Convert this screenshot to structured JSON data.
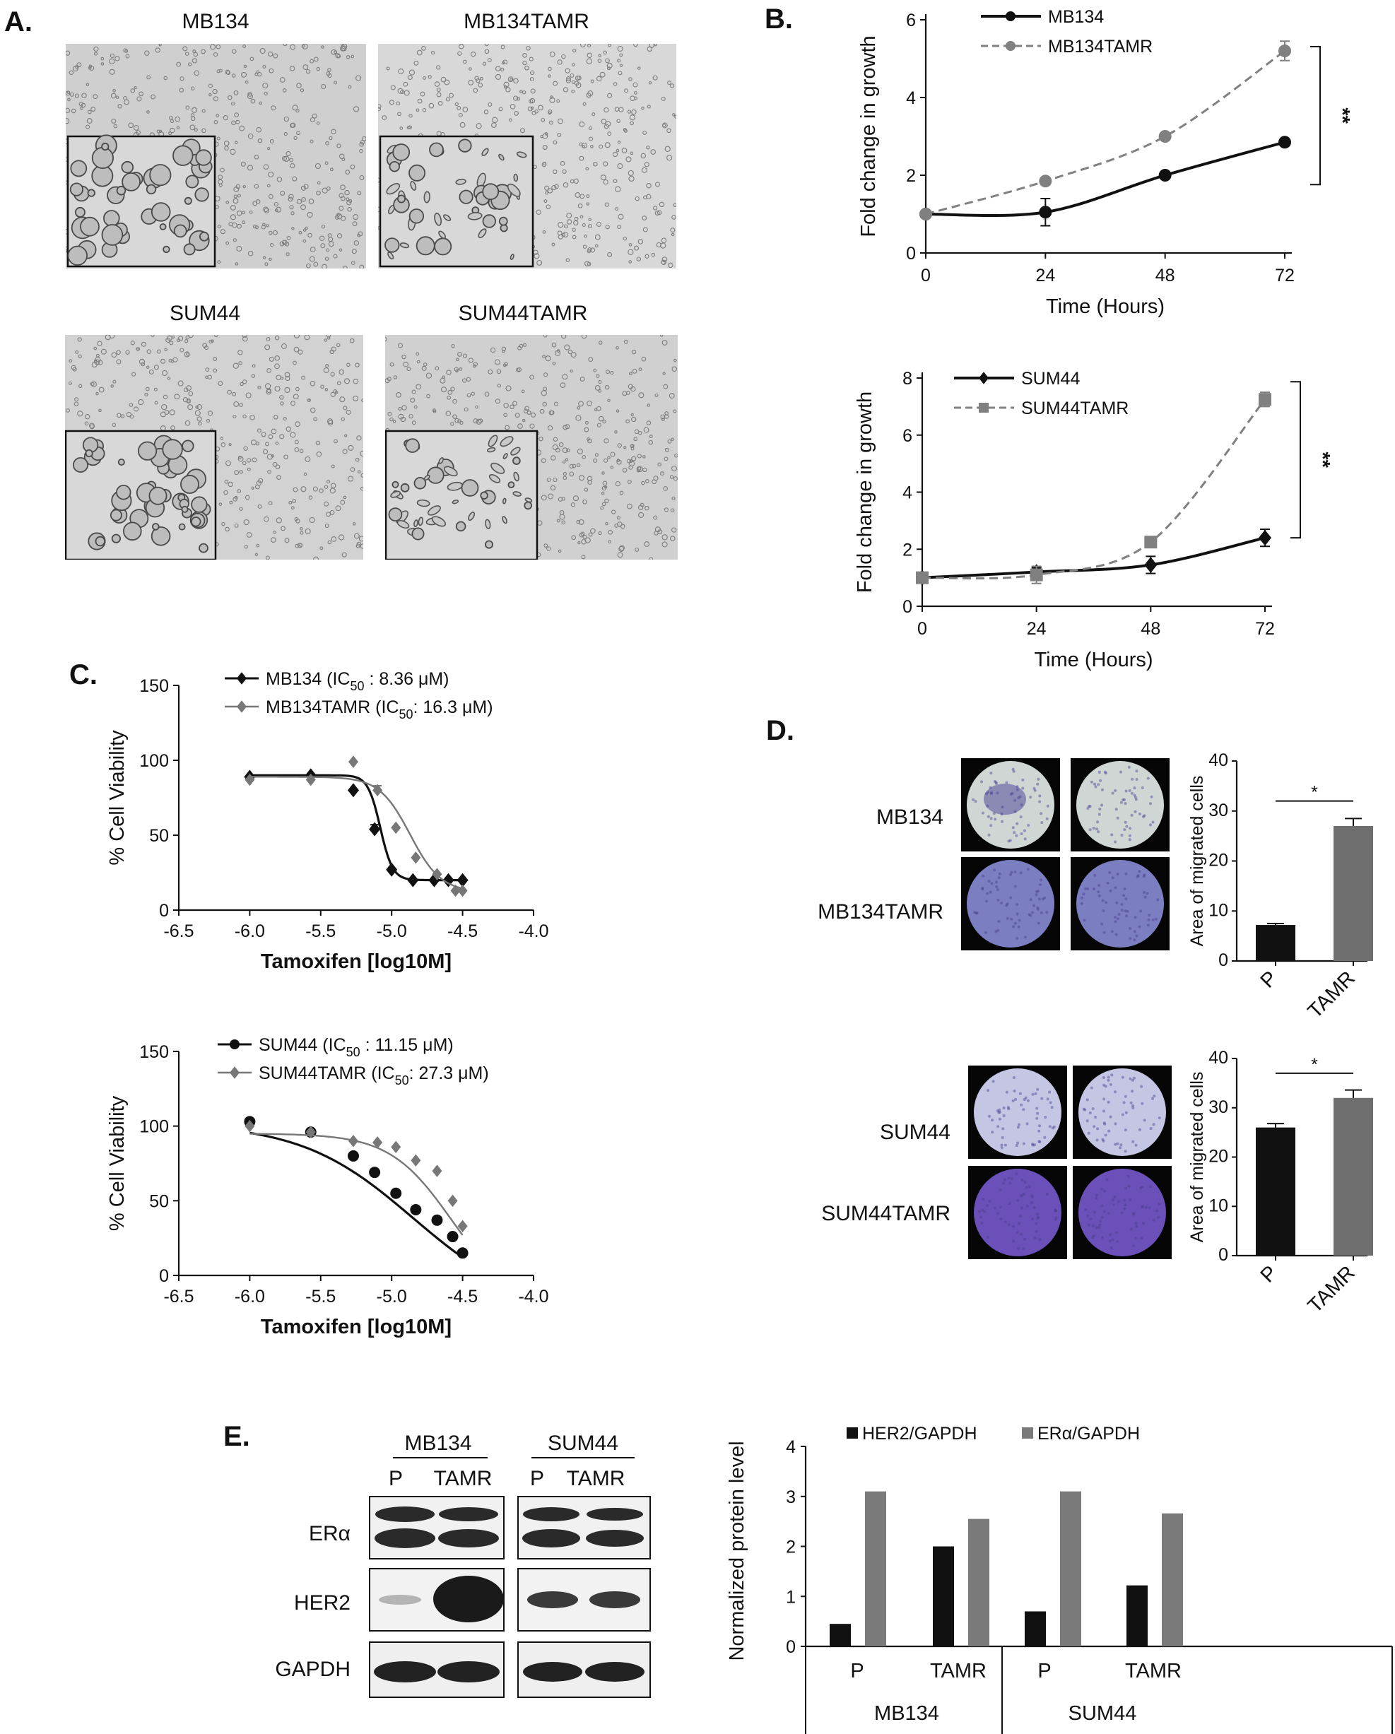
{
  "figure": {
    "panel_a": {
      "label": "A.",
      "images": [
        {
          "label": "MB134",
          "tint": "#cfcfcf"
        },
        {
          "label": "MB134TAMR",
          "tint": "#d8d8d8"
        },
        {
          "label": "SUM44",
          "tint": "#d2d2d2"
        },
        {
          "label": "SUM44TAMR",
          "tint": "#d0d0d0"
        }
      ]
    },
    "panel_b": {
      "label": "B."
    },
    "panel_c": {
      "label": "C."
    },
    "panel_d": {
      "label": "D.",
      "rows": [
        "MB134",
        "MB134TAMR",
        "SUM44",
        "SUM44TAMR"
      ],
      "well_colors": {
        "MB134": "#cfd6d4",
        "MB134TAMR": "#7b7fc2",
        "SUM44": "#c4c6e4",
        "SUM44TAMR": "#6a50b8"
      }
    },
    "panel_e": {
      "label": "E.",
      "groups": [
        "MB134",
        "SUM44"
      ],
      "lanes": [
        "P",
        "TAMR"
      ],
      "rows": [
        "ERα",
        "HER2",
        "GAPDH"
      ]
    }
  },
  "chart_data": [
    {
      "id": "b1",
      "type": "line",
      "xlabel": "Time (Hours)",
      "ylabel": "Fold change in growth",
      "xlim": [
        0,
        72
      ],
      "ylim": [
        0,
        6
      ],
      "xticks": [
        0,
        24,
        48,
        72
      ],
      "yticks": [
        0,
        2,
        4,
        6
      ],
      "significance": "**",
      "series": [
        {
          "name": "MB134",
          "x": [
            0,
            24,
            48,
            72
          ],
          "y": [
            1.0,
            1.05,
            2.0,
            2.85
          ],
          "err": [
            0.05,
            0.35,
            0.06,
            0.08
          ],
          "color": "#111111",
          "dash": false,
          "marker": "circle"
        },
        {
          "name": "MB134TAMR",
          "x": [
            0,
            24,
            48,
            72
          ],
          "y": [
            1.0,
            1.85,
            3.0,
            5.2
          ],
          "err": [
            0.05,
            0.05,
            0.08,
            0.25
          ],
          "color": "#808080",
          "dash": true,
          "marker": "circle"
        }
      ]
    },
    {
      "id": "b2",
      "type": "line",
      "xlabel": "Time (Hours)",
      "ylabel": "Fold change in growth",
      "xlim": [
        0,
        72
      ],
      "ylim": [
        0,
        8
      ],
      "xticks": [
        0,
        24,
        48,
        72
      ],
      "yticks": [
        0,
        2,
        4,
        6,
        8
      ],
      "significance": "**",
      "series": [
        {
          "name": "SUM44",
          "x": [
            0,
            24,
            48,
            72
          ],
          "y": [
            1.0,
            1.2,
            1.45,
            2.4
          ],
          "err": [
            0.1,
            0.15,
            0.3,
            0.3
          ],
          "color": "#111111",
          "dash": false,
          "marker": "diamond"
        },
        {
          "name": "SUM44TAMR",
          "x": [
            0,
            24,
            48,
            72
          ],
          "y": [
            1.0,
            1.1,
            2.25,
            7.25
          ],
          "err": [
            0.1,
            0.3,
            0.15,
            0.25
          ],
          "color": "#808080",
          "dash": true,
          "marker": "square"
        }
      ]
    },
    {
      "id": "c1",
      "type": "scatter",
      "xlabel": "Tamoxifen [log10M]",
      "ylabel": "% Cell Viability",
      "xlim": [
        -6.5,
        -4.0
      ],
      "ylim": [
        0,
        150
      ],
      "xticks": [
        "-6.5",
        "-6.0",
        "-5.5",
        "-5.0",
        "-4.5",
        "-4.0"
      ],
      "yticks": [
        0,
        50,
        100,
        150
      ],
      "series": [
        {
          "name": "MB134 (IC",
          "ic_sub": "50",
          "ic_value": " : 8.36 μM)",
          "color": "#111111",
          "marker": "diamond",
          "x": [
            -6.0,
            -5.57,
            -5.27,
            -5.12,
            -5.0,
            -4.85,
            -4.7,
            -4.6,
            -4.5
          ],
          "y": [
            89,
            90,
            80,
            54,
            27,
            20,
            20,
            20,
            20
          ],
          "err_x": [
            -5.12
          ],
          "err": [
            3
          ],
          "fit": {
            "top": 90,
            "bottom": 20,
            "logec50": -5.08,
            "hill": 10
          }
        },
        {
          "name": "MB134TAMR (IC",
          "ic_sub": "50",
          "ic_value": ": 16.3 μM)",
          "color": "#777777",
          "marker": "diamond",
          "x": [
            -6.0,
            -5.57,
            -5.27,
            -5.1,
            -4.97,
            -4.83,
            -4.68,
            -4.55,
            -4.5
          ],
          "y": [
            87,
            87,
            99,
            80,
            55,
            35,
            24,
            13,
            13
          ],
          "err_x": [
            -5.1
          ],
          "err": [
            3
          ],
          "fit": {
            "top": 89,
            "bottom": 12,
            "logec50": -4.87,
            "hill": 4
          }
        }
      ]
    },
    {
      "id": "c2",
      "type": "scatter",
      "xlabel": "Tamoxifen [log10M]",
      "ylabel": "% Cell Viability",
      "xlim": [
        -6.5,
        -4.0
      ],
      "ylim": [
        0,
        150
      ],
      "xticks": [
        "-6.5",
        "-6.0",
        "-5.5",
        "-5.0",
        "-4.5",
        "-4.0"
      ],
      "yticks": [
        0,
        50,
        100,
        150
      ],
      "series": [
        {
          "name": "SUM44 (IC",
          "ic_sub": "50",
          "ic_value": " : 11.15 μM)",
          "color": "#111111",
          "marker": "circle",
          "x": [
            -6.0,
            -5.57,
            -5.27,
            -5.12,
            -4.97,
            -4.83,
            -4.68,
            -4.57,
            -4.5
          ],
          "y": [
            103,
            96,
            80,
            69,
            55,
            44,
            37,
            26,
            15
          ],
          "fit": {
            "top": 102,
            "bottom": -25,
            "logec50": -4.85,
            "hill": 1.1
          }
        },
        {
          "name": "SUM44TAMR (IC",
          "ic_sub": "50",
          "ic_value": ": 27.3 μM)",
          "color": "#777777",
          "marker": "diamond",
          "x": [
            -6.0,
            -5.57,
            -5.27,
            -5.1,
            -4.97,
            -4.83,
            -4.68,
            -4.57,
            -4.5
          ],
          "y": [
            100,
            96,
            90,
            89,
            86,
            77,
            70,
            50,
            33
          ],
          "fit": {
            "top": 95,
            "bottom": -20,
            "logec50": -4.58,
            "hill": 2.0
          }
        }
      ]
    },
    {
      "id": "d1",
      "type": "bar",
      "ylabel": "Area of migrated cells",
      "ylim": [
        0,
        40
      ],
      "yticks": [
        0,
        10,
        20,
        30,
        40
      ],
      "categories": [
        "P",
        "TAMR"
      ],
      "values": [
        7.2,
        27
      ],
      "err": [
        0.3,
        1.5
      ],
      "colors": [
        "#111111",
        "#6e6e6e"
      ],
      "significance": "*"
    },
    {
      "id": "d2",
      "type": "bar",
      "ylabel": "Area of migrated cells",
      "ylim": [
        0,
        40
      ],
      "yticks": [
        0,
        10,
        20,
        30,
        40
      ],
      "categories": [
        "P",
        "TAMR"
      ],
      "values": [
        26,
        32
      ],
      "err": [
        0.8,
        1.6
      ],
      "colors": [
        "#111111",
        "#6e6e6e"
      ],
      "significance": "*"
    },
    {
      "id": "e",
      "type": "bar",
      "ylabel": "Normalized protein level",
      "ylim": [
        0,
        4
      ],
      "yticks": [
        0,
        1,
        2,
        3,
        4
      ],
      "categories": [
        "P",
        "TAMR",
        "P",
        "TAMR"
      ],
      "groups": [
        "MB134",
        "SUM44"
      ],
      "series": [
        {
          "name": "HER2/GAPDH",
          "values": [
            0.45,
            2.0,
            0.7,
            1.22
          ],
          "color": "#111111"
        },
        {
          "name": "ERα/GAPDH",
          "values": [
            3.1,
            2.55,
            3.1,
            2.66
          ],
          "color": "#7a7a7a"
        }
      ]
    }
  ]
}
